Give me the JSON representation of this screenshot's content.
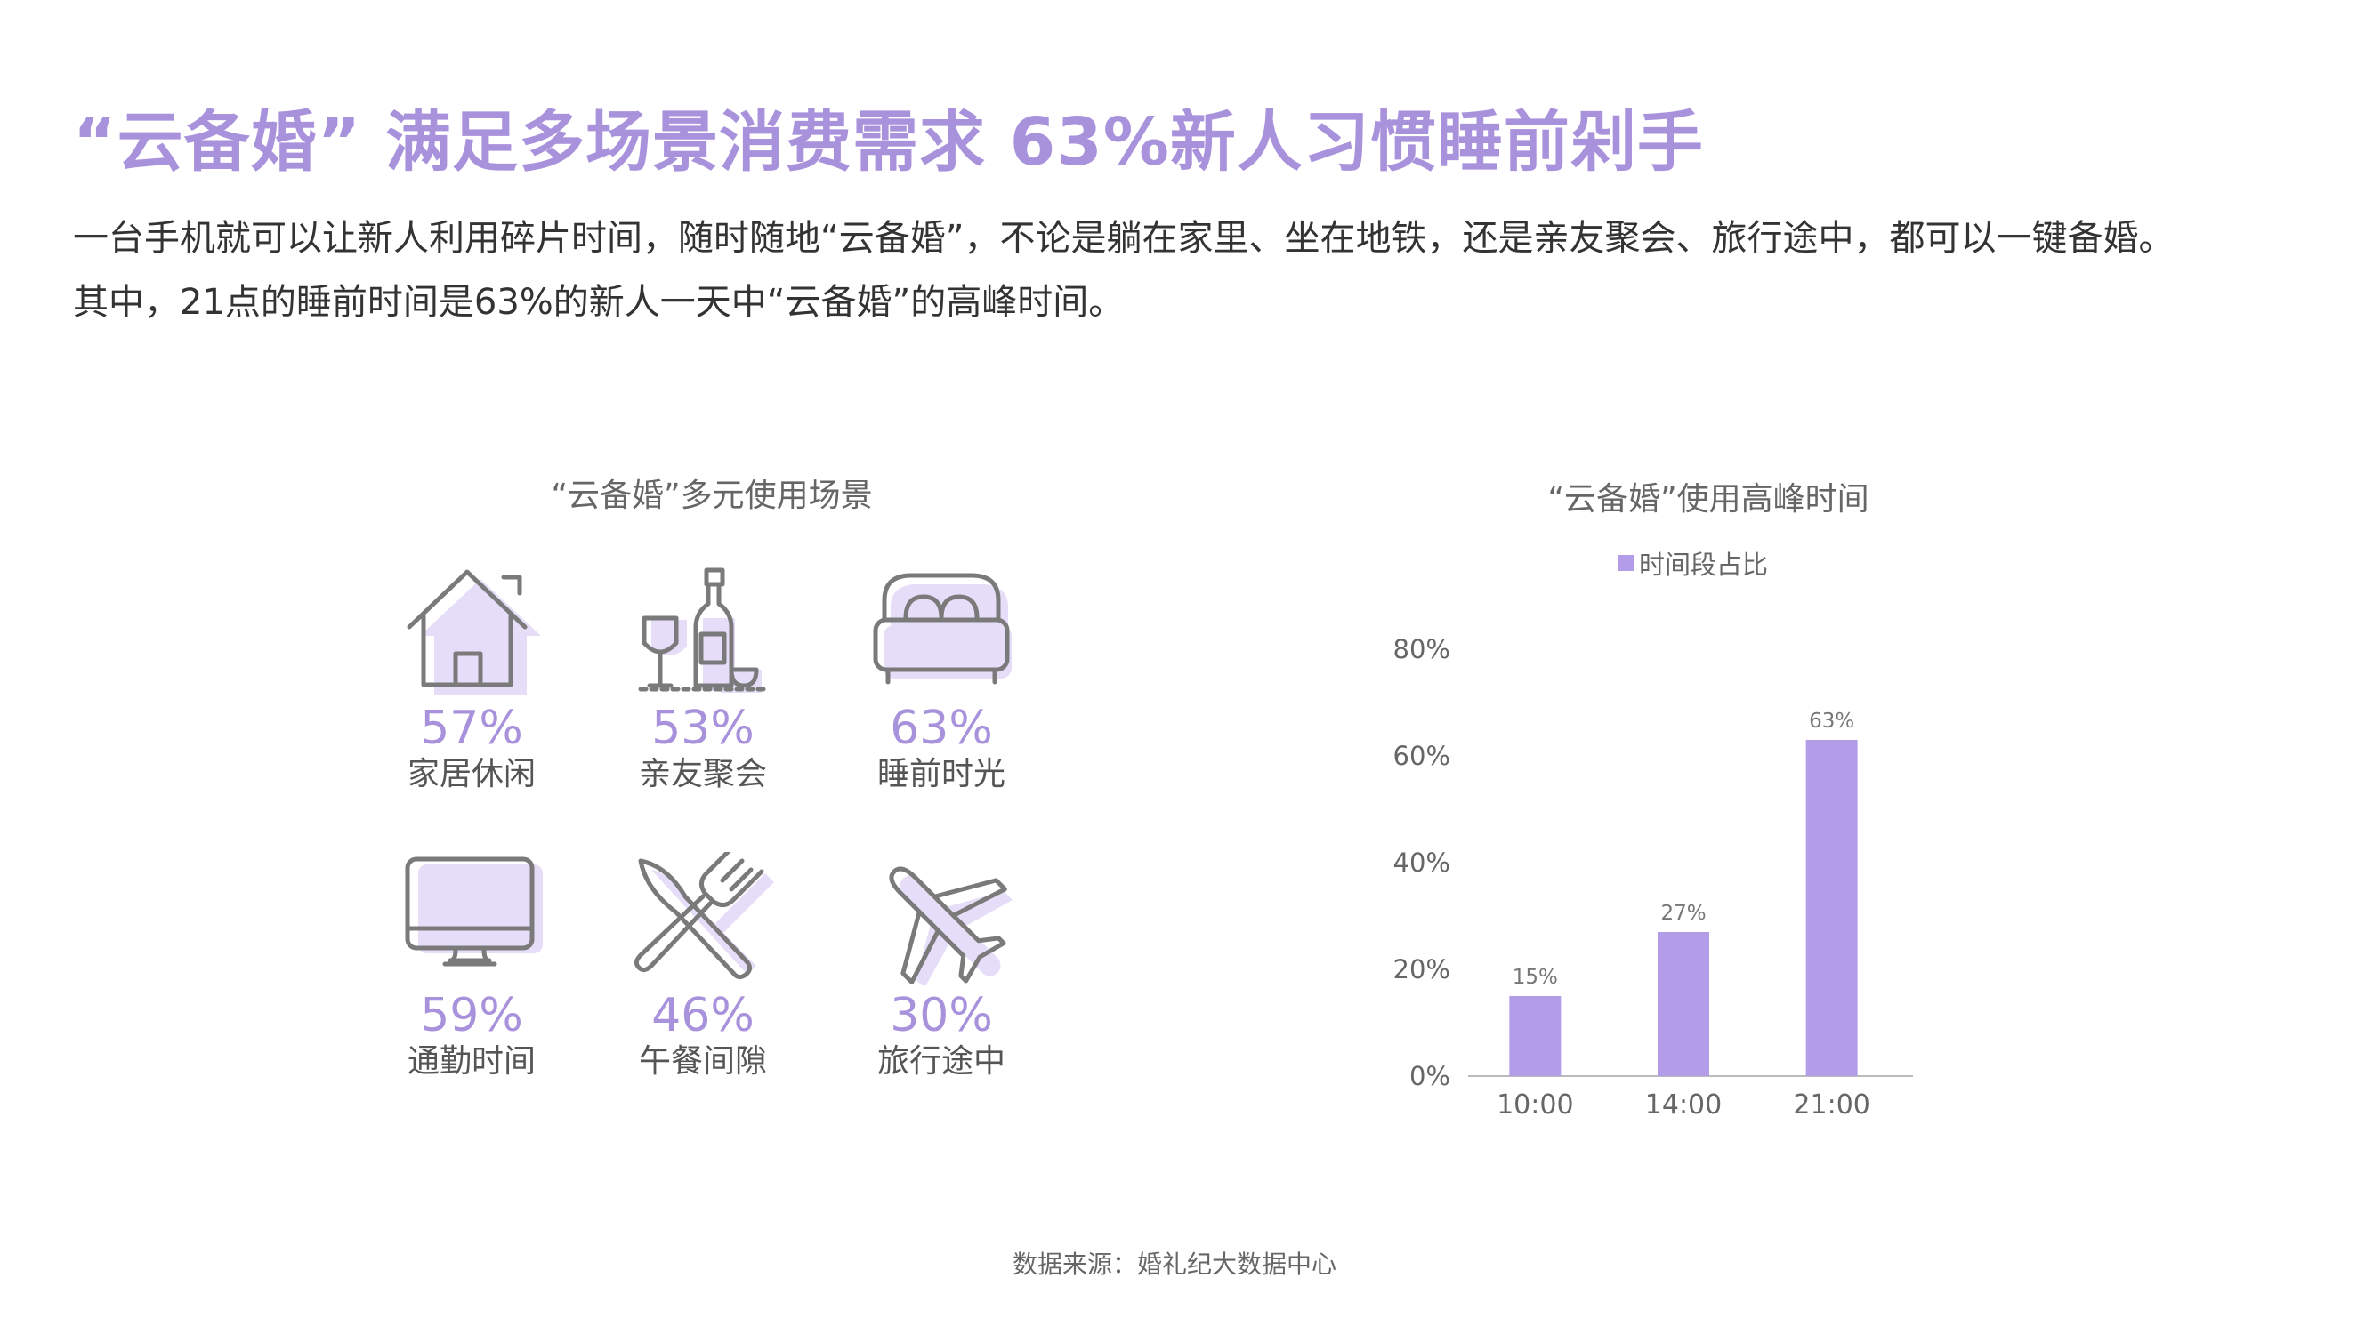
{
  "header": {
    "title": "“云备婚” 满足多场景消费需求 63%新人习惯睡前剁手",
    "desc_line1": "一台手机就可以让新人利用碎片时间，随时随地“云备婚”，不论是躺在家里、坐在地铁，还是亲友聚会、旅行途中，都可以一键备婚。",
    "desc_line2": "其中，21点的睡前时间是63%的新人一天中“云备婚”的高峰时间。"
  },
  "scenes": {
    "title": "“云备婚”多元使用场景",
    "items": [
      {
        "pct": "57%",
        "label": "家居休闲",
        "icon": "house-icon"
      },
      {
        "pct": "53%",
        "label": "亲友聚会",
        "icon": "wine-bottle-icon"
      },
      {
        "pct": "63%",
        "label": "睡前时光",
        "icon": "bed-icon"
      },
      {
        "pct": "59%",
        "label": "通勤时间",
        "icon": "monitor-icon"
      },
      {
        "pct": "46%",
        "label": "午餐间隙",
        "icon": "fork-knife-icon"
      },
      {
        "pct": "30%",
        "label": "旅行途中",
        "icon": "airplane-icon"
      }
    ]
  },
  "chart_data": {
    "type": "bar",
    "title": "“云备婚”使用高峰时间",
    "categories": [
      "10:00",
      "14:00",
      "21:00"
    ],
    "series": [
      {
        "name": "时间段占比",
        "values": [
          15,
          27,
          63
        ]
      }
    ],
    "data_labels": [
      "15%",
      "27%",
      "63%"
    ],
    "y_ticks": [
      "0%",
      "20%",
      "40%",
      "60%",
      "80%"
    ],
    "ylim": [
      0,
      80
    ],
    "grid": false,
    "legend_position": "top",
    "bar_color": "#b39de8"
  },
  "colors": {
    "accent": "#a992dc",
    "icon_shadow": "#e6ddf8",
    "icon_stroke": "#7a7a7a"
  },
  "footer": {
    "source": "数据来源：婚礼纪大数据中心"
  }
}
